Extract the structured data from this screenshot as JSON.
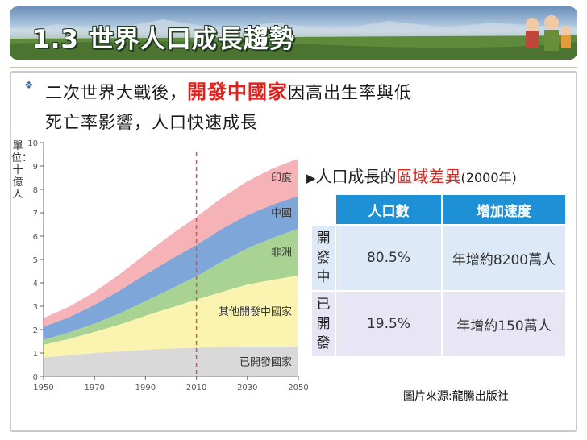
{
  "banner": {
    "title": "1.3 世界人口成長趨勢"
  },
  "text": {
    "bullet_icon": "diamond-bullet-icon",
    "line1_before": "二次世界大戰後，",
    "line1_highlight": "開發中國家",
    "line1_after": "因高出生率與低",
    "line2": "死亡率影響，人口快速成長"
  },
  "colors": {
    "highlight": "#e0201b",
    "table_header": "#1d90d6"
  },
  "chart_data": {
    "type": "area",
    "stacked": true,
    "ylabel": "單位：十億人",
    "x": [
      1950,
      1960,
      1970,
      1980,
      1990,
      2000,
      2010,
      2020,
      2030,
      2040,
      2050
    ],
    "xticks": [
      "1950",
      "1970",
      "1990",
      "2010",
      "2030",
      "2050"
    ],
    "yticks": [
      "0",
      "1",
      "2",
      "3",
      "4",
      "5",
      "6",
      "7",
      "8",
      "9",
      "10"
    ],
    "ylim": [
      0,
      10
    ],
    "xlim": [
      1950,
      2050
    ],
    "marker_line_x": 2010,
    "series": [
      {
        "name": "已開發國家",
        "color": "#d9d9d9",
        "values": [
          0.8,
          0.9,
          1.0,
          1.07,
          1.14,
          1.19,
          1.23,
          1.26,
          1.28,
          1.28,
          1.27
        ]
      },
      {
        "name": "其他開發中國家",
        "color": "#fbf4b0",
        "values": [
          0.55,
          0.7,
          0.9,
          1.15,
          1.45,
          1.75,
          2.05,
          2.35,
          2.65,
          2.85,
          3.05
        ]
      },
      {
        "name": "非洲",
        "color": "#a9d392",
        "values": [
          0.22,
          0.28,
          0.36,
          0.48,
          0.63,
          0.8,
          1.0,
          1.3,
          1.55,
          1.8,
          2.0
        ]
      },
      {
        "name": "中國",
        "color": "#7fa6d9",
        "values": [
          0.55,
          0.65,
          0.8,
          0.98,
          1.14,
          1.27,
          1.34,
          1.4,
          1.42,
          1.42,
          1.4
        ]
      },
      {
        "name": "印度",
        "color": "#f5b3b8",
        "values": [
          0.37,
          0.45,
          0.55,
          0.7,
          0.87,
          1.05,
          1.2,
          1.33,
          1.45,
          1.55,
          1.6
        ]
      }
    ]
  },
  "table": {
    "title_prefix": "人口成長的",
    "title_highlight": "區域差異",
    "title_year": "(2000年)",
    "headers": [
      "人口數",
      "增加速度"
    ],
    "rows": [
      {
        "label": "開發中",
        "population": "80.5%",
        "growth": "年增約8200萬人"
      },
      {
        "label": "已開發",
        "population": "19.5%",
        "growth": "年增約150萬人"
      }
    ]
  },
  "source": "圖片來源:龍騰出版社"
}
